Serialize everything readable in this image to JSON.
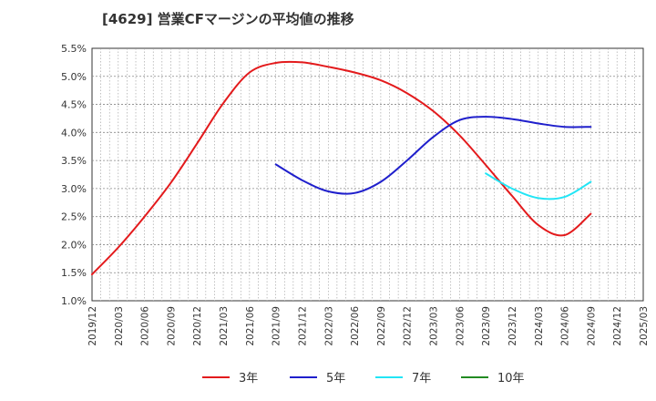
{
  "chart_data": {
    "type": "line",
    "title": "[4629]  営業CFマージンの平均値の推移",
    "xlabel": "",
    "ylabel": "",
    "ylim": [
      1.0,
      5.5
    ],
    "y_ticks": [
      "1.0%",
      "1.5%",
      "2.0%",
      "2.5%",
      "3.0%",
      "3.5%",
      "4.0%",
      "4.5%",
      "5.0%",
      "5.5%"
    ],
    "x_ticks": [
      "2019/12",
      "2020/03",
      "2020/06",
      "2020/09",
      "2020/12",
      "2021/03",
      "2021/06",
      "2021/09",
      "2021/12",
      "2022/03",
      "2022/06",
      "2022/09",
      "2022/12",
      "2023/03",
      "2023/06",
      "2023/09",
      "2023/12",
      "2024/03",
      "2024/06",
      "2024/09",
      "2024/12",
      "2025/03"
    ],
    "grid": true,
    "legend_position": "bottom",
    "series": [
      {
        "name": "3年",
        "color": "#e31a1c",
        "x": [
          "2019/12",
          "2020/03",
          "2020/06",
          "2020/09",
          "2020/12",
          "2021/03",
          "2021/06",
          "2021/09",
          "2021/12",
          "2022/03",
          "2022/06",
          "2022/09",
          "2022/12",
          "2023/03",
          "2023/06",
          "2023/09",
          "2023/12",
          "2024/03",
          "2024/06",
          "2024/09"
        ],
        "values": [
          1.47,
          1.95,
          2.5,
          3.1,
          3.8,
          4.52,
          5.07,
          5.24,
          5.25,
          5.17,
          5.07,
          4.93,
          4.7,
          4.38,
          3.95,
          3.42,
          2.87,
          2.35,
          2.17,
          2.55
        ]
      },
      {
        "name": "5年",
        "color": "#1f1fcc",
        "x": [
          "2021/09",
          "2021/12",
          "2022/03",
          "2022/06",
          "2022/09",
          "2022/12",
          "2023/03",
          "2023/06",
          "2023/09",
          "2023/12",
          "2024/03",
          "2024/06",
          "2024/09"
        ],
        "values": [
          3.43,
          3.15,
          2.95,
          2.92,
          3.12,
          3.5,
          3.92,
          4.22,
          4.28,
          4.24,
          4.16,
          4.1,
          4.1
        ]
      },
      {
        "name": "7年",
        "color": "#22e5f5",
        "x": [
          "2023/09",
          "2023/12",
          "2024/03",
          "2024/06",
          "2024/09"
        ],
        "values": [
          3.27,
          3.0,
          2.83,
          2.85,
          3.12
        ]
      },
      {
        "name": "10年",
        "color": "#228b22",
        "x": [],
        "values": []
      }
    ]
  }
}
